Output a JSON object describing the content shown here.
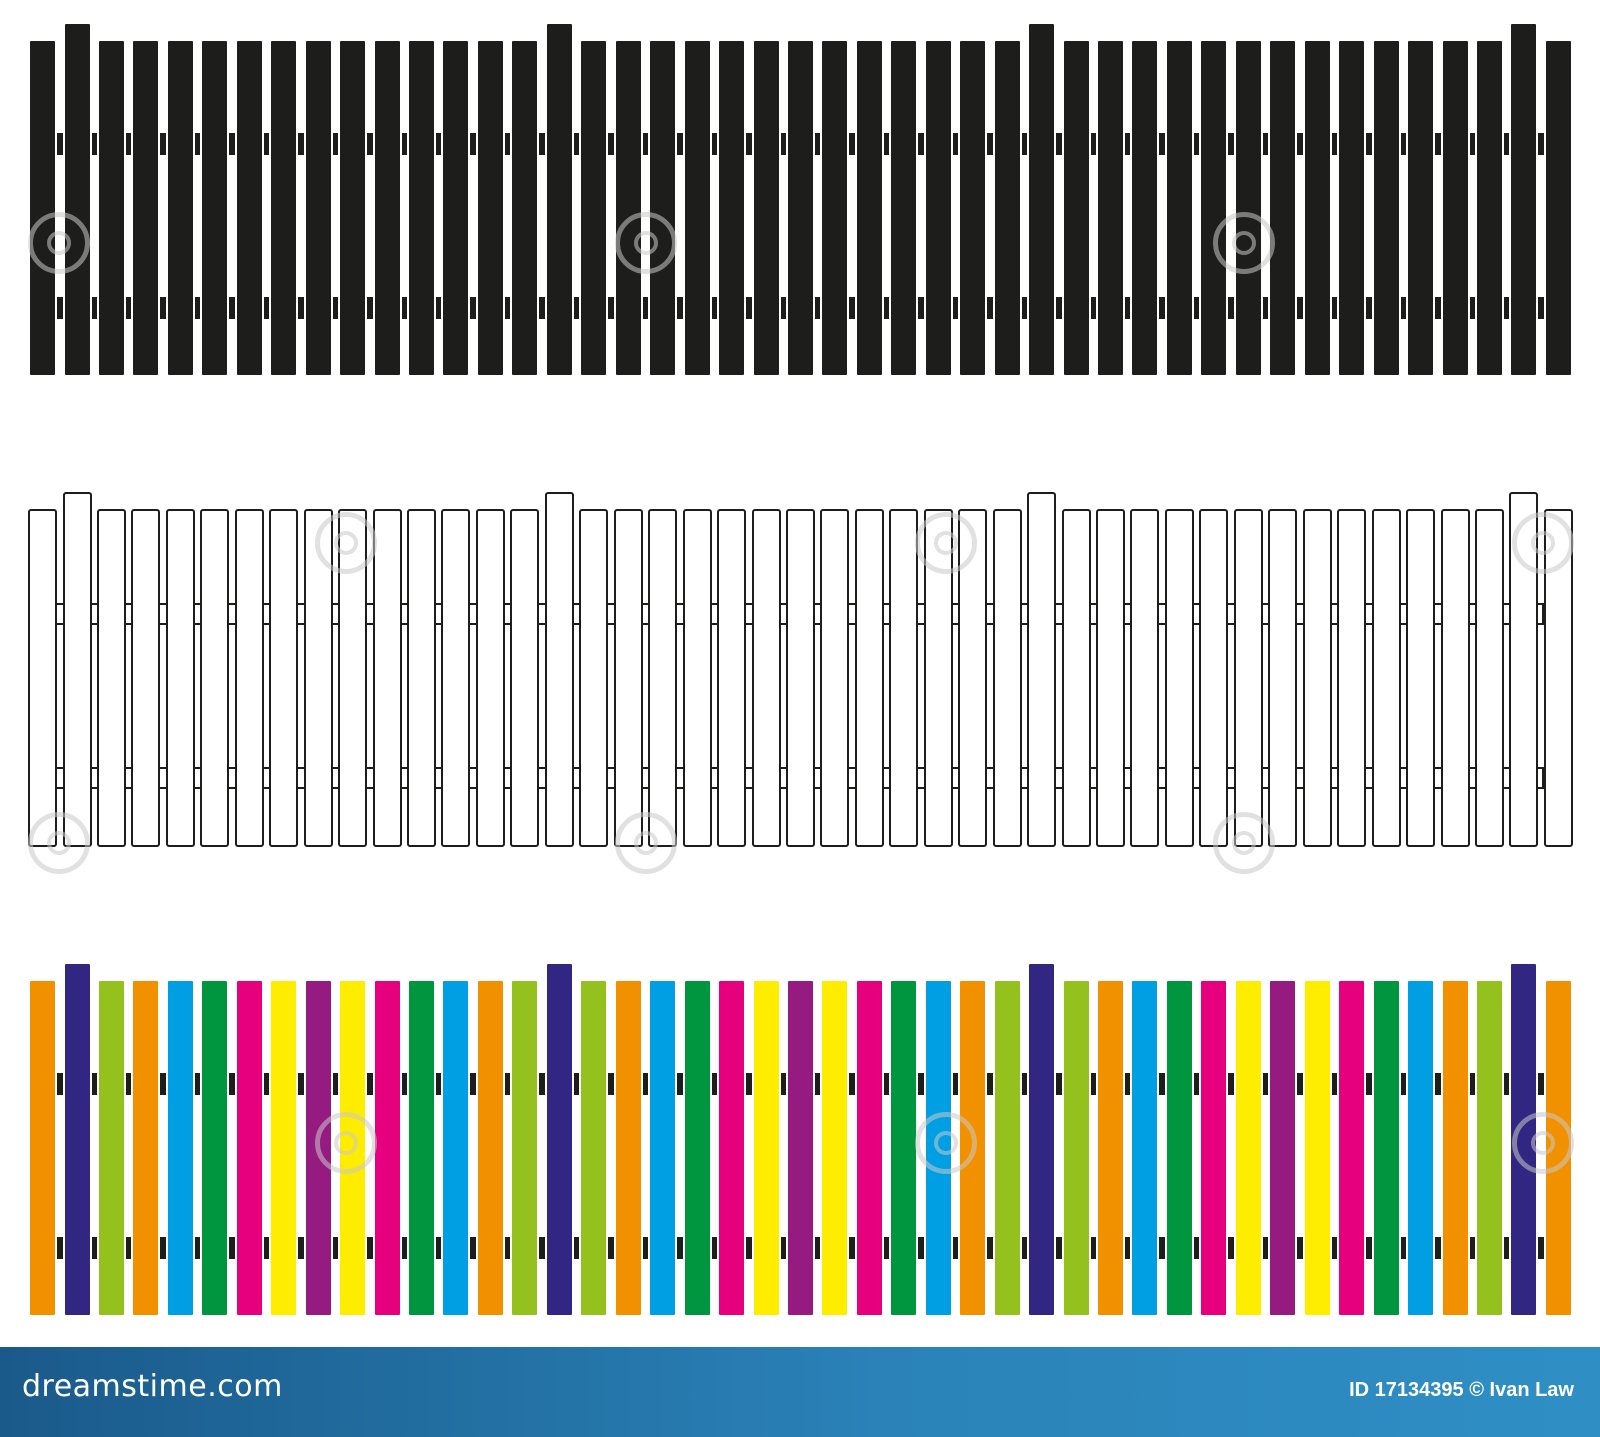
{
  "footer": {
    "site_logo": "dreamstime.com",
    "credit": "ID 17134395 © Ivan Law"
  },
  "fences": [
    {
      "name": "black-fence",
      "style": "silhouette",
      "fill": "#1d1d1b",
      "outline": "#1d1d1b"
    },
    {
      "name": "outline-fence",
      "style": "outline",
      "fill": "#ffffff",
      "outline": "#1d1d1b"
    },
    {
      "name": "colorful-fence",
      "style": "color",
      "outline": "#1d1d1b"
    }
  ],
  "picket_count": 45,
  "tall_picket_positions": [
    1,
    15,
    29,
    43
  ],
  "colorful_picket_colors": [
    "#f29100",
    "#312783",
    "#95c11f",
    "#f29100",
    "#009fe3",
    "#009640",
    "#e6007e",
    "#ffed00",
    "#951b81",
    "#ffed00",
    "#e6007e",
    "#009640",
    "#009fe3",
    "#f29100",
    "#95c11f",
    "#312783",
    "#95c11f",
    "#f29100",
    "#009fe3",
    "#009640",
    "#e6007e",
    "#ffed00",
    "#951b81",
    "#ffed00",
    "#e6007e",
    "#009640",
    "#009fe3",
    "#f29100",
    "#95c11f",
    "#312783",
    "#95c11f",
    "#f29100",
    "#009fe3",
    "#009640",
    "#e6007e",
    "#ffed00",
    "#951b81",
    "#ffed00",
    "#e6007e",
    "#009640",
    "#009fe3",
    "#f29100",
    "#95c11f",
    "#312783",
    "#f29100"
  ]
}
